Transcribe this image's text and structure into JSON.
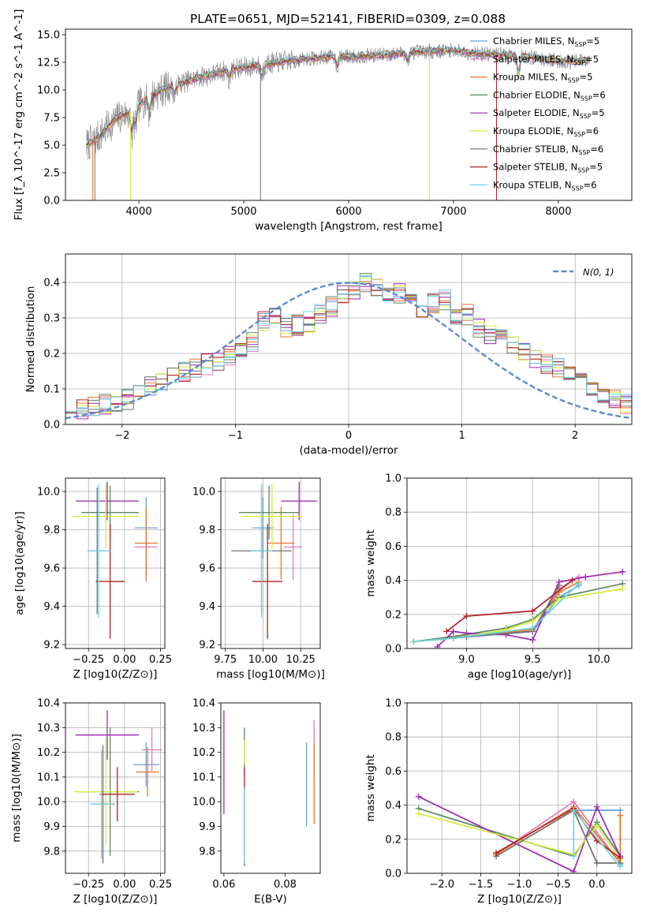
{
  "figure": {
    "title": "PLATE=0651, MJD=52141, FIBERID=0309, z=0.088"
  },
  "colors": {
    "Chabrier MILES": "#6aa0d8",
    "Salpeter MILES": "#e377c2",
    "Kroupa MILES": "#e6792b",
    "Chabrier ELODIE": "#5b8a60",
    "Salpeter ELODIE": "#9c27b0",
    "Kroupa ELODIE": "#d4ec3a",
    "Chabrier STELIB": "#707070",
    "Salpeter STELIB": "#b41f1f",
    "Kroupa STELIB": "#6fd4e0",
    "normal": "#5b8bd6",
    "grid": "#b0b0b0"
  },
  "chart_data": [
    {
      "id": "spectrum",
      "type": "line",
      "xlabel": "wavelength [Angstrom, rest frame]",
      "ylabel": "Flux [f_λ 10^-17 erg cm^-2 s^-1 A^-1]",
      "xlim": [
        3300,
        8700
      ],
      "ylim": [
        0,
        15.5
      ],
      "xticks": [
        4000,
        5000,
        6000,
        7000,
        8000
      ],
      "yticks": [
        0.0,
        2.5,
        5.0,
        7.5,
        10.0,
        12.5,
        15.0
      ],
      "grid": false,
      "legend_position": "top-right",
      "legend": [
        {
          "model": "Chabrier MILES",
          "label": "Chabrier MILES, N",
          "sub": "SSP",
          "eq": "=5"
        },
        {
          "model": "Salpeter MILES",
          "label": "Salpeter MILES, N",
          "sub": "SSP",
          "eq": "=5"
        },
        {
          "model": "Kroupa MILES",
          "label": "Kroupa MILES, N",
          "sub": "SSP",
          "eq": "=5"
        },
        {
          "model": "Chabrier ELODIE",
          "label": "Chabrier ELODIE, N",
          "sub": "SSP",
          "eq": "=6"
        },
        {
          "model": "Salpeter ELODIE",
          "label": "Salpeter ELODIE, N",
          "sub": "SSP",
          "eq": "=5"
        },
        {
          "model": "Kroupa ELODIE",
          "label": "Kroupa ELODIE, N",
          "sub": "SSP",
          "eq": "=6"
        },
        {
          "model": "Chabrier STELIB",
          "label": "Chabrier STELIB, N",
          "sub": "SSP",
          "eq": "=6"
        },
        {
          "model": "Salpeter STELIB",
          "label": "Salpeter STELIB, N",
          "sub": "SSP",
          "eq": "=5"
        },
        {
          "model": "Kroupa STELIB",
          "label": "Kroupa STELIB, N",
          "sub": "SSP",
          "eq": "=6"
        }
      ],
      "continuum": {
        "x": [
          3500,
          3600,
          3700,
          3800,
          3900,
          4000,
          4100,
          4200,
          4300,
          4400,
          4500,
          4600,
          4700,
          4800,
          4900,
          5000,
          5200,
          5400,
          5600,
          5800,
          6000,
          6200,
          6400,
          6600,
          6800,
          7000,
          7200,
          7400,
          7600,
          7800,
          8000,
          8200
        ],
        "y": [
          5.0,
          5.6,
          6.6,
          7.5,
          7.9,
          8.7,
          9.3,
          9.9,
          10.3,
          10.6,
          10.9,
          11.2,
          11.4,
          11.7,
          11.9,
          12.0,
          12.3,
          12.6,
          12.8,
          13.0,
          13.0,
          13.1,
          13.2,
          13.4,
          13.5,
          13.6,
          13.3,
          13.2,
          13.1,
          12.9,
          12.6,
          12.6
        ]
      },
      "dips": [
        {
          "x": 3933,
          "depth": 2.2
        },
        {
          "x": 3968,
          "depth": 1.8
        },
        {
          "x": 4101,
          "depth": 1.3
        },
        {
          "x": 4340,
          "depth": 1.1
        },
        {
          "x": 4861,
          "depth": 0.9
        },
        {
          "x": 5175,
          "depth": 1.1
        },
        {
          "x": 5892,
          "depth": 0.9
        },
        {
          "x": 6563,
          "depth": 0.8
        },
        {
          "x": 7620,
          "depth": 2.0
        }
      ],
      "spikes": [
        {
          "x": 3560,
          "model": "Kroupa MILES"
        },
        {
          "x": 3580,
          "model": "Chabrier STELIB"
        },
        {
          "x": 3920,
          "model": "Kroupa ELODIE"
        },
        {
          "x": 5160,
          "model": "Chabrier STELIB"
        },
        {
          "x": 6770,
          "model": "Kroupa ELODIE"
        },
        {
          "x": 7410,
          "model": "Salpeter STELIB"
        }
      ]
    },
    {
      "id": "residuals",
      "type": "line",
      "xlabel": "(data-model)/error",
      "ylabel": "Normed distribution",
      "xlim": [
        -2.5,
        2.5
      ],
      "ylim": [
        0,
        0.48
      ],
      "xticks": [
        -2,
        -1,
        0,
        1,
        2
      ],
      "yticks": [
        0.0,
        0.1,
        0.2,
        0.3,
        0.4
      ],
      "grid": true,
      "legend_position": "top-right",
      "legend_label": "N(0, 1)",
      "bin_width": 0.1,
      "bin_start": -2.5,
      "histogram_bins": [
        0.04,
        0.045,
        0.05,
        0.055,
        0.05,
        0.07,
        0.1,
        0.11,
        0.12,
        0.14,
        0.15,
        0.16,
        0.17,
        0.18,
        0.19,
        0.2,
        0.23,
        0.29,
        0.3,
        0.27,
        0.28,
        0.29,
        0.31,
        0.33,
        0.37,
        0.38,
        0.4,
        0.38,
        0.36,
        0.37,
        0.34,
        0.33,
        0.34,
        0.35,
        0.3,
        0.31,
        0.27,
        0.25,
        0.24,
        0.23,
        0.2,
        0.18,
        0.17,
        0.16,
        0.14,
        0.12,
        0.1,
        0.09,
        0.07,
        0.06,
        0.05
      ],
      "normal_curve": {
        "mu": 0,
        "sigma": 1
      }
    },
    {
      "id": "age-vs-Z",
      "type": "scatter",
      "xlabel": "Z [log10(Z/Z⊙)]",
      "ylabel": "age  [log10(age/yr)]",
      "xlim": [
        -0.41,
        0.28
      ],
      "ylim": [
        9.18,
        10.07
      ],
      "xticks": [
        -0.25,
        0.0,
        0.25
      ],
      "yticks": [
        9.2,
        9.4,
        9.6,
        9.8,
        10.0
      ],
      "grid": true,
      "errorbars": [
        {
          "model": "Chabrier MILES",
          "x": 0.15,
          "y": 9.81,
          "xerr": 0.08,
          "yerr": 0.16
        },
        {
          "model": "Salpeter MILES",
          "x": 0.15,
          "y": 9.71,
          "xerr": 0.08,
          "yerr": 0.18
        },
        {
          "model": "Kroupa MILES",
          "x": 0.15,
          "y": 9.73,
          "xerr": 0.08,
          "yerr": 0.19
        },
        {
          "model": "Chabrier ELODIE",
          "x": -0.1,
          "y": 9.89,
          "xerr": 0.2,
          "yerr": 0.14
        },
        {
          "model": "Salpeter ELODIE",
          "x": -0.12,
          "y": 9.95,
          "xerr": 0.22,
          "yerr": 0.1
        },
        {
          "model": "Kroupa ELODIE",
          "x": -0.13,
          "y": 9.87,
          "xerr": 0.23,
          "yerr": 0.17
        },
        {
          "model": "Chabrier STELIB",
          "x": -0.19,
          "y": 9.69,
          "xerr": 0.06,
          "yerr": 0.33
        },
        {
          "model": "Salpeter STELIB",
          "x": -0.1,
          "y": 9.53,
          "xerr": 0.1,
          "yerr": 0.3
        },
        {
          "model": "Kroupa STELIB",
          "x": -0.18,
          "y": 9.69,
          "xerr": 0.08,
          "yerr": 0.35
        }
      ]
    },
    {
      "id": "age-vs-mass",
      "type": "scatter",
      "xlabel": "mass [log10(M/M⊙)]",
      "ylabel": "",
      "xlim": [
        9.72,
        10.38
      ],
      "ylim": [
        9.18,
        10.07
      ],
      "xticks": [
        9.75,
        10.0,
        10.25
      ],
      "yticks": [
        9.2,
        9.4,
        9.6,
        9.8,
        10.0
      ],
      "grid": true,
      "errorbars": [
        {
          "model": "Chabrier MILES",
          "x": 10.0,
          "y": 9.81,
          "xerr": 0.07,
          "yerr": 0.16
        },
        {
          "model": "Salpeter MILES",
          "x": 10.2,
          "y": 9.71,
          "xerr": 0.06,
          "yerr": 0.17
        },
        {
          "model": "Kroupa MILES",
          "x": 10.12,
          "y": 9.73,
          "xerr": 0.09,
          "yerr": 0.19
        },
        {
          "model": "Chabrier ELODIE",
          "x": 10.04,
          "y": 9.89,
          "xerr": 0.2,
          "yerr": 0.14
        },
        {
          "model": "Salpeter ELODIE",
          "x": 10.24,
          "y": 9.95,
          "xerr": 0.12,
          "yerr": 0.1
        },
        {
          "model": "Kroupa ELODIE",
          "x": 10.06,
          "y": 9.87,
          "xerr": 0.2,
          "yerr": 0.17
        },
        {
          "model": "Chabrier STELIB",
          "x": 9.99,
          "y": 9.69,
          "xerr": 0.2,
          "yerr": 0.33
        },
        {
          "model": "Salpeter STELIB",
          "x": 10.03,
          "y": 9.53,
          "xerr": 0.1,
          "yerr": 0.3
        },
        {
          "model": "Kroupa STELIB",
          "x": 9.99,
          "y": 9.69,
          "xerr": 0.07,
          "yerr": 0.35
        }
      ]
    },
    {
      "id": "massweight-vs-age",
      "type": "line",
      "xlabel": "age  [log10(age/yr)]",
      "ylabel": "mass weight",
      "xlim": [
        8.55,
        10.25
      ],
      "ylim": [
        0,
        1.0
      ],
      "xticks": [
        9.0,
        9.5,
        10.0
      ],
      "yticks": [
        0.0,
        0.2,
        0.4,
        0.6,
        0.8,
        1.0
      ],
      "grid": true,
      "series": [
        {
          "model": "Chabrier MILES",
          "x": [
            8.6,
            8.9,
            9.5,
            9.7,
            9.85
          ],
          "y": [
            0.04,
            0.06,
            0.1,
            0.3,
            0.37
          ]
        },
        {
          "model": "Salpeter MILES",
          "x": [
            8.6,
            8.9,
            9.5,
            9.7,
            9.85
          ],
          "y": [
            0.04,
            0.07,
            0.1,
            0.35,
            0.42
          ]
        },
        {
          "model": "Kroupa MILES",
          "x": [
            8.6,
            8.9,
            9.5,
            9.7,
            9.85
          ],
          "y": [
            0.04,
            0.065,
            0.11,
            0.33,
            0.39
          ]
        },
        {
          "model": "Chabrier ELODIE",
          "x": [
            8.6,
            8.9,
            9.3,
            9.5,
            9.7,
            10.18
          ],
          "y": [
            0.04,
            0.07,
            0.12,
            0.17,
            0.3,
            0.38
          ]
        },
        {
          "model": "Salpeter ELODIE",
          "x": [
            8.78,
            8.9,
            9.0,
            9.3,
            9.5,
            9.7,
            9.9,
            10.18
          ],
          "y": [
            0.01,
            0.1,
            0.09,
            0.08,
            0.05,
            0.39,
            0.42,
            0.45
          ]
        },
        {
          "model": "Kroupa ELODIE",
          "x": [
            8.6,
            8.9,
            9.3,
            9.5,
            9.7,
            10.18
          ],
          "y": [
            0.04,
            0.06,
            0.11,
            0.16,
            0.29,
            0.35
          ]
        },
        {
          "model": "Chabrier STELIB",
          "x": [
            8.9,
            9.0,
            9.5,
            9.7
          ],
          "y": [
            0.06,
            0.07,
            0.1,
            0.37
          ]
        },
        {
          "model": "Salpeter STELIB",
          "x": [
            8.85,
            9.0,
            9.5,
            9.8
          ],
          "y": [
            0.1,
            0.19,
            0.22,
            0.4
          ]
        },
        {
          "model": "Kroupa STELIB",
          "x": [
            8.6,
            8.9,
            9.5,
            9.85
          ],
          "y": [
            0.04,
            0.06,
            0.12,
            0.38
          ]
        }
      ]
    },
    {
      "id": "mass-vs-Z",
      "type": "scatter",
      "xlabel": "Z [log10(Z/Z⊙)]",
      "ylabel": "mass [log10(M/M⊙)]",
      "xlim": [
        -0.41,
        0.28
      ],
      "ylim": [
        9.71,
        10.4
      ],
      "xticks": [
        -0.25,
        0.0,
        0.25
      ],
      "yticks": [
        9.8,
        9.9,
        10.0,
        10.1,
        10.2,
        10.3,
        10.4
      ],
      "grid": true,
      "errorbars": [
        {
          "model": "Chabrier MILES",
          "x": 0.15,
          "y": 10.15,
          "xerr": 0.09,
          "yerr": 0.09
        },
        {
          "model": "Salpeter MILES",
          "x": 0.19,
          "y": 10.21,
          "xerr": 0.07,
          "yerr": 0.09
        },
        {
          "model": "Kroupa MILES",
          "x": 0.16,
          "y": 10.12,
          "xerr": 0.08,
          "yerr": 0.1
        },
        {
          "model": "Chabrier ELODIE",
          "x": -0.1,
          "y": 10.04,
          "xerr": 0.2,
          "yerr": 0.26
        },
        {
          "model": "Salpeter ELODIE",
          "x": -0.12,
          "y": 10.27,
          "xerr": 0.22,
          "yerr": 0.1
        },
        {
          "model": "Kroupa ELODIE",
          "x": -0.13,
          "y": 10.04,
          "xerr": 0.22,
          "yerr": 0.22
        },
        {
          "model": "Chabrier STELIB",
          "x": -0.15,
          "y": 9.99,
          "xerr": 0.08,
          "yerr": 0.24
        },
        {
          "model": "Salpeter STELIB",
          "x": -0.05,
          "y": 10.03,
          "xerr": 0.12,
          "yerr": 0.11
        },
        {
          "model": "Kroupa STELIB",
          "x": -0.16,
          "y": 9.99,
          "xerr": 0.08,
          "yerr": 0.22
        }
      ]
    },
    {
      "id": "mass-vs-EBV",
      "type": "scatter",
      "xlabel": "E(B-V)",
      "ylabel": "",
      "xlim": [
        0.059,
        0.0915
      ],
      "ylim": [
        9.71,
        10.4
      ],
      "xticks": [
        0.06,
        0.08
      ],
      "yticks": [
        9.8,
        9.9,
        10.0,
        10.1,
        10.2,
        10.3,
        10.4
      ],
      "grid": false,
      "errorbars": [
        {
          "model": "Chabrier MILES",
          "x": 0.087,
          "y": 10.07,
          "xerr": 0,
          "yerr": 0.17
        },
        {
          "model": "Salpeter MILES",
          "x": 0.0895,
          "y": 10.21,
          "xerr": 0,
          "yerr": 0.12
        },
        {
          "model": "Kroupa MILES",
          "x": 0.0895,
          "y": 10.07,
          "xerr": 0,
          "yerr": 0.16
        },
        {
          "model": "Chabrier ELODIE",
          "x": 0.0667,
          "y": 10.2,
          "xerr": 0,
          "yerr": 0.1
        },
        {
          "model": "Salpeter ELODIE",
          "x": 0.06,
          "y": 10.16,
          "xerr": 0,
          "yerr": 0.21
        },
        {
          "model": "Kroupa ELODIE",
          "x": 0.0667,
          "y": 10.2,
          "xerr": 0,
          "yerr": 0.05
        },
        {
          "model": "Chabrier STELIB",
          "x": 0.0667,
          "y": 9.9,
          "xerr": 0,
          "yerr": 0.16
        },
        {
          "model": "Salpeter STELIB",
          "x": 0.0667,
          "y": 10.1,
          "xerr": 0,
          "yerr": 0.04
        },
        {
          "model": "Kroupa STELIB",
          "x": 0.0667,
          "y": 9.9,
          "xerr": 0,
          "yerr": 0.15
        }
      ]
    },
    {
      "id": "massweight-vs-Z",
      "type": "line",
      "xlabel": "Z [log10(Z/Z⊙)]",
      "ylabel": "mass weight",
      "xlim": [
        -2.45,
        0.45
      ],
      "ylim": [
        0,
        1.0
      ],
      "xticks": [
        -2.0,
        -1.5,
        -1.0,
        -0.5,
        0.0
      ],
      "yticks": [
        0.0,
        0.2,
        0.4,
        0.6,
        0.8,
        1.0
      ],
      "grid": true,
      "series": [
        {
          "model": "Chabrier MILES",
          "x": [
            -0.3,
            0.3,
            0.3
          ],
          "y": [
            0.37,
            0.37,
            0.05
          ]
        },
        {
          "model": "Salpeter MILES",
          "x": [
            -1.3,
            -0.3,
            0.3
          ],
          "y": [
            0.11,
            0.42,
            0.06
          ]
        },
        {
          "model": "Kroupa MILES",
          "x": [
            -1.3,
            -0.3,
            0.3,
            0.3
          ],
          "y": [
            0.11,
            0.39,
            0.06,
            0.34
          ]
        },
        {
          "model": "Chabrier ELODIE",
          "x": [
            -2.3,
            -0.3,
            0.0,
            0.3
          ],
          "y": [
            0.38,
            0.1,
            0.3,
            0.1
          ]
        },
        {
          "model": "Salpeter ELODIE",
          "x": [
            -2.3,
            -0.3,
            0.0,
            0.3
          ],
          "y": [
            0.45,
            0.01,
            0.39,
            0.1
          ]
        },
        {
          "model": "Kroupa ELODIE",
          "x": [
            -2.3,
            -0.3,
            0.0,
            0.3
          ],
          "y": [
            0.35,
            0.11,
            0.28,
            0.08
          ]
        },
        {
          "model": "Chabrier STELIB",
          "x": [
            -1.3,
            -0.3,
            0.0,
            0.3
          ],
          "y": [
            0.1,
            0.37,
            0.06,
            0.06
          ]
        },
        {
          "model": "Salpeter STELIB",
          "x": [
            -1.3,
            -0.3,
            0.0,
            0.3
          ],
          "y": [
            0.12,
            0.38,
            0.19,
            0.09
          ]
        },
        {
          "model": "Kroupa STELIB",
          "x": [
            -0.3,
            -0.3,
            0.3
          ],
          "y": [
            0.1,
            0.37,
            0.04
          ]
        }
      ]
    }
  ]
}
